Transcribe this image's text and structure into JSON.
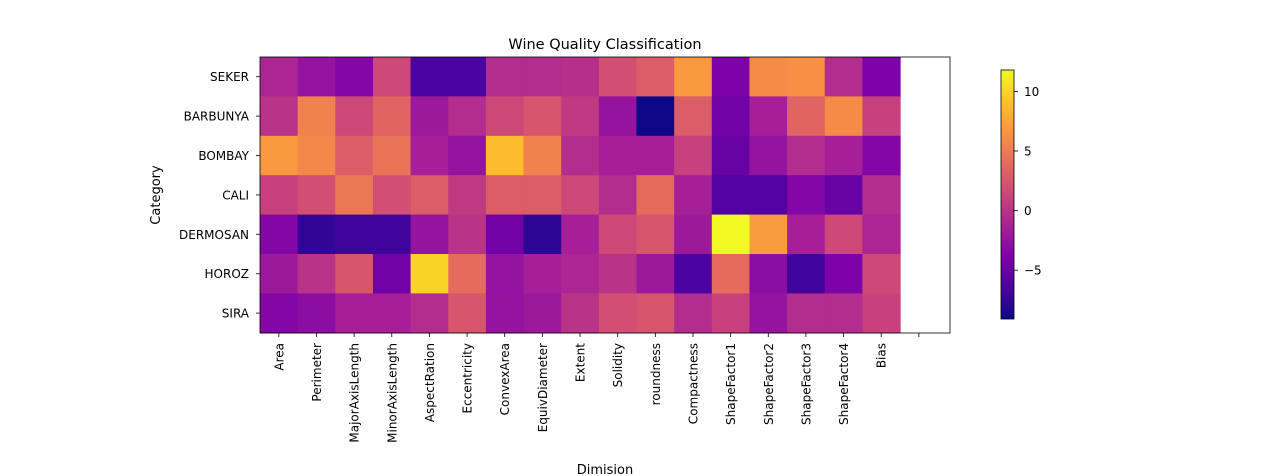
{
  "chart_data": {
    "type": "heatmap",
    "title": "Wine Quality Classification",
    "xlabel": "Dimision",
    "ylabel": "Category",
    "colormap": "plasma",
    "colorbar": {
      "vmin": -9.1,
      "vmax": 11.8,
      "ticks": [
        -5,
        0,
        5,
        10
      ],
      "tick_labels": [
        "−5",
        "0",
        "5",
        "10"
      ]
    },
    "x_categories": [
      "Area",
      "Perimeter",
      "MajorAxisLength",
      "MinorAxisLength",
      "AspectRation",
      "Eccentricity",
      "ConvexArea",
      "EquivDiameter",
      "Extent",
      "Solidity",
      "roundness",
      "Compactness",
      "ShapeFactor1",
      "ShapeFactor2",
      "ShapeFactor3",
      "ShapeFactor4",
      "Bias"
    ],
    "y_categories": [
      "SEKER",
      "BARBUNYA",
      "BOMBAY",
      "CALI",
      "DERMOSAN",
      "HOROZ",
      "SIRA"
    ],
    "values": [
      [
        -1.0,
        -2.5,
        -3.5,
        1.5,
        -6.5,
        -6.5,
        -0.5,
        -0.5,
        -0.3,
        2.0,
        3.0,
        6.8,
        -4.0,
        6.0,
        6.3,
        -0.5,
        -4.0
      ],
      [
        0.0,
        5.5,
        1.5,
        3.5,
        -2.0,
        -0.5,
        1.5,
        2.5,
        0.5,
        -2.5,
        -9.1,
        3.0,
        -4.5,
        -1.5,
        3.5,
        6.0,
        1.0
      ],
      [
        6.8,
        5.8,
        3.0,
        4.5,
        -1.5,
        -2.5,
        8.8,
        5.5,
        -0.5,
        -1.5,
        -1.5,
        1.0,
        -5.0,
        -2.5,
        -0.5,
        -1.5,
        -3.5
      ],
      [
        1.0,
        2.0,
        4.8,
        2.0,
        3.0,
        0.5,
        3.0,
        3.0,
        1.5,
        -0.5,
        4.0,
        -1.5,
        -6.0,
        -6.0,
        -3.5,
        -5.0,
        -0.5
      ],
      [
        -3.5,
        -7.5,
        -7.0,
        -7.0,
        -2.5,
        0.0,
        -4.5,
        -7.8,
        -1.5,
        1.5,
        2.5,
        -2.0,
        11.8,
        7.0,
        -1.5,
        1.5,
        -1.0
      ],
      [
        -2.0,
        0.0,
        2.5,
        -4.5,
        10.0,
        4.0,
        -2.5,
        -1.5,
        -1.0,
        0.0,
        -2.0,
        -6.5,
        4.0,
        -3.0,
        -7.0,
        -4.0,
        1.5
      ],
      [
        -3.5,
        -3.0,
        -1.5,
        -1.5,
        -0.5,
        2.5,
        -2.5,
        -2.0,
        0.0,
        2.0,
        2.5,
        -0.5,
        1.0,
        -2.5,
        -0.5,
        -0.5,
        1.0
      ]
    ]
  }
}
